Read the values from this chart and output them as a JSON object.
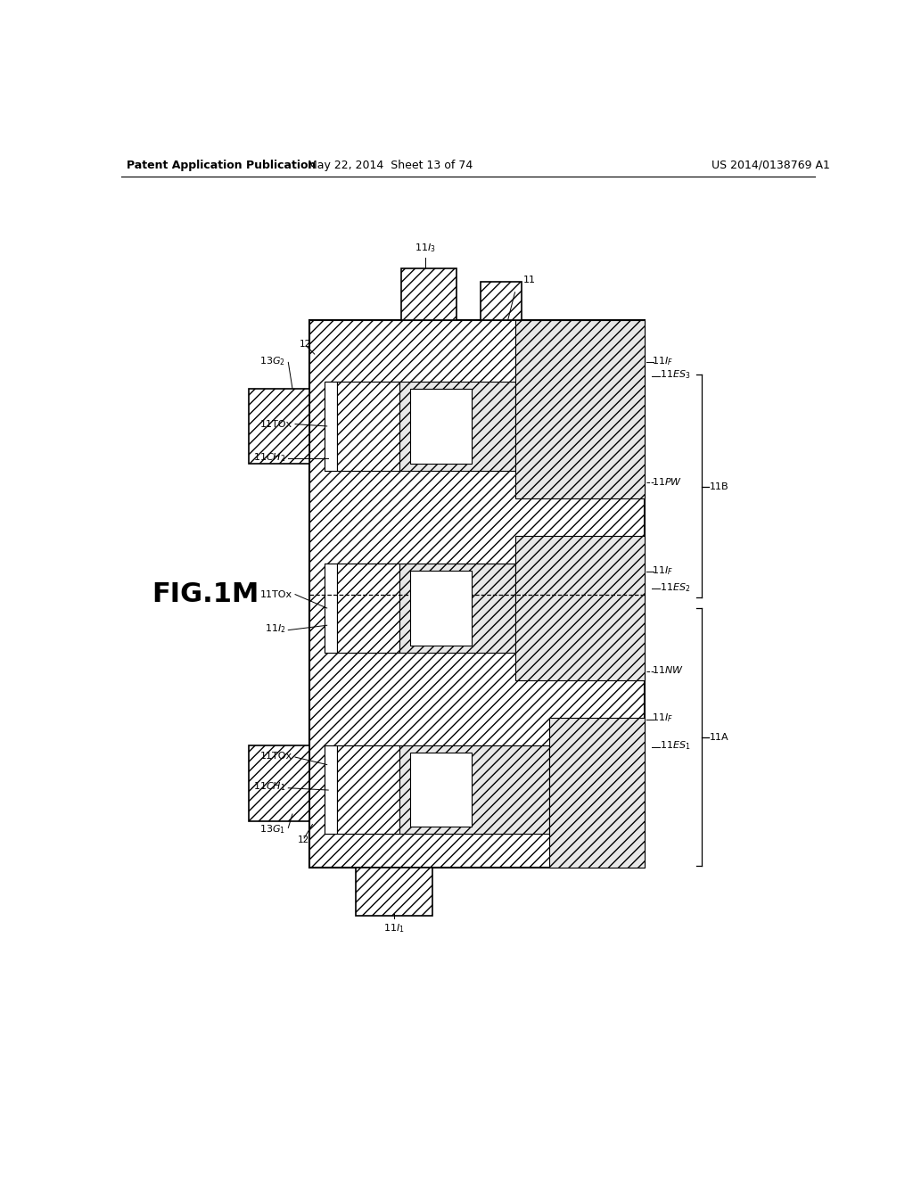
{
  "bg_color": "#ffffff",
  "header_left": "Patent Application Publication",
  "header_mid": "May 22, 2014  Sheet 13 of 74",
  "header_right": "US 2014/0138769 A1",
  "fig_label": "FIG.1M"
}
